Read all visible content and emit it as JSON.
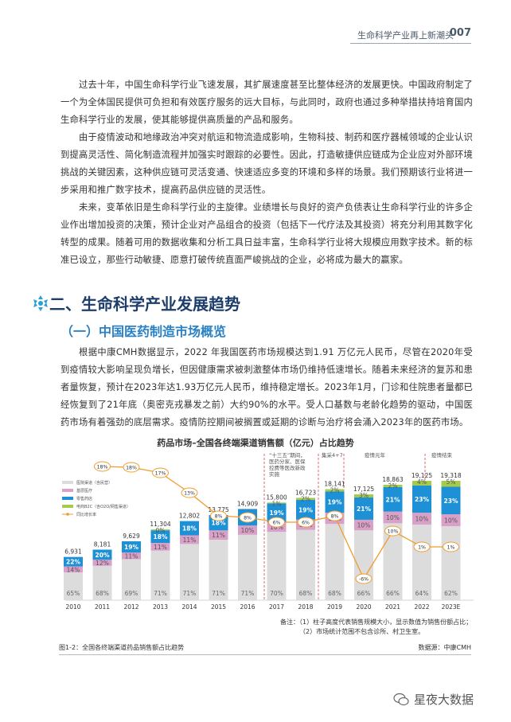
{
  "header": {
    "title": "生命科学产业再上新潮头",
    "page": "007"
  },
  "paragraphs": [
    "过去十年，中国生命科学行业飞速发展，其扩展速度甚至比整体经济的发展更快。中国政府制定了一个为全体国民提供可负担和有效医疗服务的远大目标，与此同时，政府也通过多种举措扶持培育国内生命科学行业的发展，使其能够提供高质量的产品和服务。",
    "由于疫情波动和地缘政治冲突对航运和物流造成影响，生物科技、制药和医疗器械领域的企业认识到提高灵活性、简化制造流程并加强实时跟踪的必要性。因此，打造敏捷供应链成为企业应对外部环境挑战的关键因素，这种供应链可灵活变通、快速适应多变的环境和多样的场景。我们预期该行业将进一步采用和推广数字技术，提高药品供应链的灵活性。",
    "未来，变革依旧是生命科学行业的主旋律。业绩增长与良好的资产负债表让生命科学行业的许多企业作出增加投资的决策，预计企业对产品组合的投资（包括下一代疗法及其投资）将充分利用其数字化转型的成果。随着可用的数据收集和分析工具日益丰富，生命科学行业将大规模应用数字技术。新的标准已设立，那些行动敏捷、愿意打破传统直面严峻挑战的企业，必将成为最大的赢家。",
    "根据中康CMH数据显示，2022 年我国医药市场规模达到1.91 万亿元人民币，尽管在2020年受到疫情较大影响呈现负增长，但因健康需求被刺激整体市场仍维持低速增长。随着未来经济的复苏和患者量恢复，预计在2023年达1.93万亿元人民币，维持稳定增长。2023年1月，门诊和住院患者量都已经恢复到了21年底（奥密克戎暴发之前）大约90%的水平。受人口基数与老龄化趋势的驱动，中国医药市场有着强劲的底层需求。疫情防控期间被搁置或延期的诊断与治疗将会涌入2023年的医药市场。"
  ],
  "section": {
    "title": "二、生命科学产业发展趋势",
    "subtitle": "（一）中国医药制造市场概览"
  },
  "chart_title": "药品市场–全国各终端渠道销售额（亿元）占比趋势",
  "legend": [
    "医院渠道（含民营）",
    "基层医疗",
    "零售药店",
    "电商B2C（含O2O/网售渠道）",
    "同比增长率"
  ],
  "period_labels": [
    "“十三五”期间，医药分家、医保控费等医改新政实施",
    "集采4+7",
    "疫情元年",
    "疫情结束"
  ],
  "notes": [
    "备注：（1）柱子高度代表销售规模大小，显示数值为销售份额占比；",
    "（2）市场统计范围不包含诊所、村卫生室。"
  ],
  "caption": "图1-2：全国各终端渠道药品销售额占比趋势",
  "source": "数据源：中康CMH",
  "watermark": "星夜大数据",
  "chart_data": {
    "type": "bar",
    "title": "药品市场–全国各终端渠道销售额（亿元）占比趋势",
    "categories": [
      "2010",
      "2011",
      "2012",
      "2013",
      "2014",
      "2015",
      "2016",
      "2017",
      "2018",
      "2019",
      "2020",
      "2021",
      "2022",
      "2023E"
    ],
    "totals": [
      6931,
      8181,
      9629,
      11304,
      12802,
      13775,
      14909,
      15800,
      16723,
      18141,
      17125,
      18863,
      19125,
      19318
    ],
    "total_labels": [
      "6,931",
      "8,181",
      "9,629",
      "11,304",
      "12,802",
      "13,775",
      "14,909",
      "15,800",
      "16,723",
      "18,141",
      "17,125",
      "18,863",
      "19,125",
      "19,318"
    ],
    "series": [
      {
        "name": "医院渠道（含民营）",
        "color": "#dcdcdc",
        "values": [
          "65%",
          "68%",
          "69%",
          "71%",
          "71%",
          "71%",
          "71%",
          "70%",
          "68%",
          "68%",
          "66%",
          "66%",
          "64%",
          "62%"
        ]
      },
      {
        "name": "基层医疗",
        "color": "#d9a0c8",
        "values": [
          "14%",
          "12%",
          "11%",
          "11%",
          "11%",
          "11%",
          "10%",
          "10%",
          "10%",
          "10%",
          "10%",
          "10%",
          "10%",
          "10%"
        ]
      },
      {
        "name": "零售药店",
        "color": "#1e90d6",
        "values": [
          "22%",
          "20%",
          "19%",
          "18%",
          "18%",
          "18%",
          "18%",
          "19%",
          "19%",
          "19%",
          "21%",
          "21%",
          "23%",
          "23%"
        ]
      },
      {
        "name": "电商B2C（含O2O/网售渠道）",
        "color": "#a4cb4b",
        "values": [
          "",
          "",
          "",
          "0%",
          "",
          "",
          "",
          "1%",
          "2%",
          "2%",
          "3%",
          "2%",
          "4%",
          "5%"
        ]
      }
    ],
    "growth": {
      "name": "同比增长率",
      "color": "#f29b2c",
      "values": [
        "",
        "18%",
        "18%",
        "17%",
        "13%",
        "8%",
        "8%",
        "6%",
        "6%",
        "8%",
        "-6%",
        "10%",
        "1%",
        "1%"
      ]
    }
  }
}
